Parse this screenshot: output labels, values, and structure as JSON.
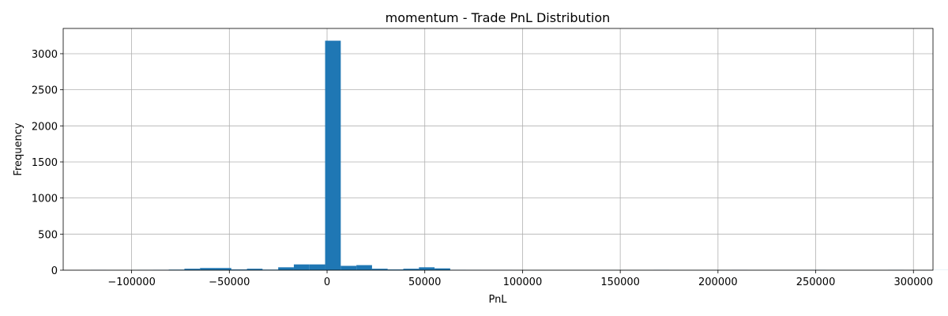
{
  "chart_data": {
    "type": "bar",
    "title": "momentum - Trade PnL Distribution",
    "xlabel": "PnL",
    "ylabel": "Frequency",
    "xlim": [
      -135000,
      310000
    ],
    "ylim": [
      0,
      3350
    ],
    "xticks": [
      -100000,
      -50000,
      0,
      50000,
      100000,
      150000,
      200000,
      250000,
      300000
    ],
    "xtick_labels": [
      "−100000",
      "−50000",
      "0",
      "50000",
      "100000",
      "150000",
      "200000",
      "250000",
      "300000"
    ],
    "yticks": [
      0,
      500,
      1000,
      1500,
      2000,
      2500,
      3000
    ],
    "ytick_labels": [
      "0",
      "500",
      "1000",
      "1500",
      "2000",
      "2500",
      "3000"
    ],
    "grid": true,
    "bar_color": "#1f77b4",
    "bin_edges_start": -121000,
    "bin_width": 8000,
    "values": [
      2,
      1,
      1,
      3,
      5,
      8,
      20,
      30,
      30,
      10,
      20,
      8,
      40,
      80,
      80,
      3180,
      60,
      70,
      20,
      10,
      20,
      40,
      25,
      5,
      3,
      2,
      2,
      1,
      1,
      1,
      1,
      1,
      1,
      1,
      1,
      1,
      3,
      1,
      1,
      1,
      1,
      2,
      1,
      1,
      1,
      1,
      3,
      1,
      1,
      1,
      1,
      3,
      1,
      1,
      1,
      1,
      2
    ]
  }
}
